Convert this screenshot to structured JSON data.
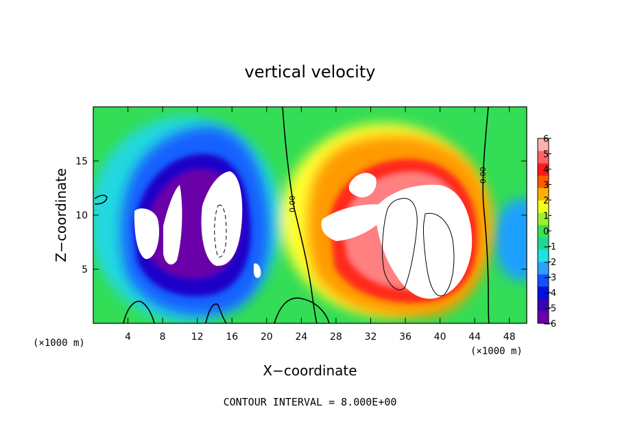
{
  "chart_data": {
    "type": "heatmap",
    "title": "vertical velocity",
    "xlabel": "X−coordinate",
    "ylabel": "Z−coordinate",
    "x_unit_left": "(×1000 m)",
    "x_unit_right": "(×1000 m)",
    "footer": "CONTOUR INTERVAL = 8.000E+00",
    "contour_label": "0.00",
    "xlim": [
      0,
      50
    ],
    "ylim": [
      0,
      20
    ],
    "x_ticks": [
      4,
      8,
      12,
      16,
      20,
      24,
      28,
      32,
      36,
      40,
      44,
      48
    ],
    "y_ticks": [
      5,
      10,
      15
    ],
    "colorbar": {
      "range": [
        -6,
        6
      ],
      "labels": [
        "6",
        "5",
        "4",
        "3",
        "2",
        "1",
        "0",
        "−1",
        "−2",
        "−3",
        "−4",
        "−5",
        "−6"
      ],
      "colors": [
        "#6a00a8",
        "#3d00b4",
        "#0010e0",
        "#1550ff",
        "#2aa0ff",
        "#22e0e0",
        "#20d890",
        "#3fe050",
        "#9cf030",
        "#f0ff20",
        "#ffb000",
        "#ff5c00",
        "#ff1a1a",
        "#ff6464",
        "#ffb0b0"
      ]
    }
  }
}
